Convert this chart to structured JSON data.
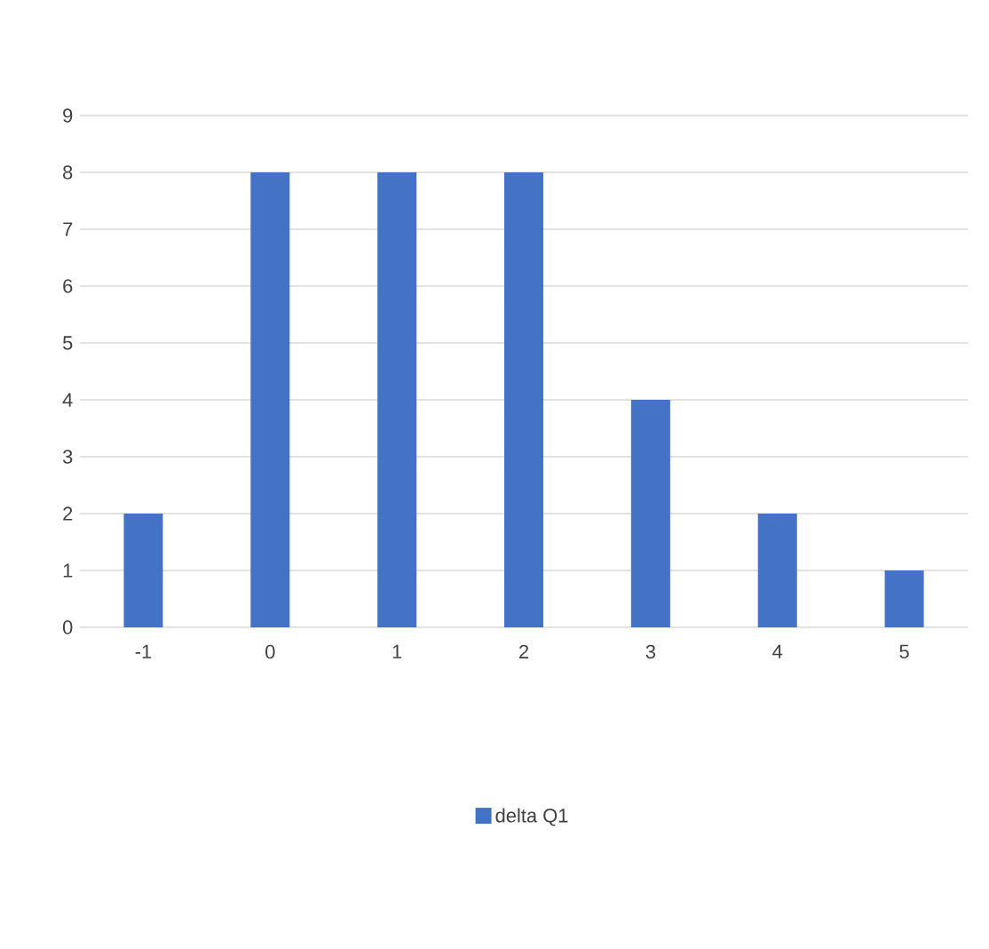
{
  "chart_data": {
    "type": "bar",
    "categories": [
      "-1",
      "0",
      "1",
      "2",
      "3",
      "4",
      "5"
    ],
    "series": [
      {
        "name": "delta Q1",
        "color": "#4472c4",
        "values": [
          2,
          8,
          8,
          8,
          4,
          2,
          1
        ]
      }
    ],
    "ylim": [
      0,
      9
    ],
    "yticks": [
      0,
      1,
      2,
      3,
      4,
      5,
      6,
      7,
      8,
      9
    ],
    "grid": "y",
    "legend": "bottom"
  }
}
